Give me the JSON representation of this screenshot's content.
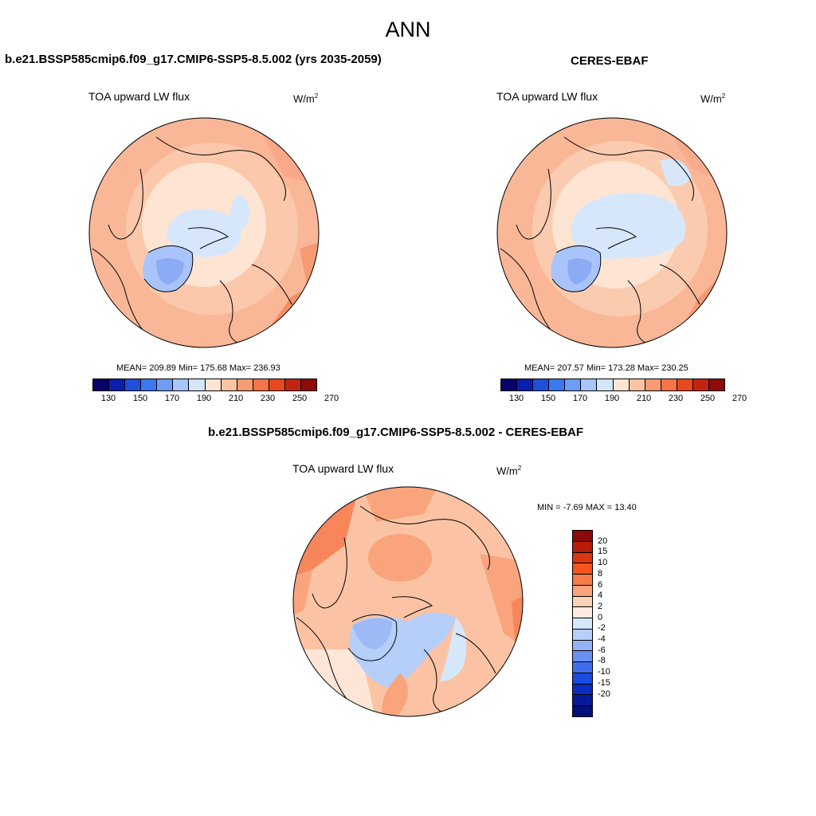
{
  "main_title": "ANN",
  "panels": [
    {
      "title": "b.e21.BSSP585cmip6.f09_g17.CMIP6-SSP5-8.5.002 (yrs 2035-2059)",
      "variable": "TOA upward LW flux",
      "units_base": "W/m",
      "units_exp": "2",
      "stats": "MEAN= 209.89  Min= 175.68  Max= 236.93"
    },
    {
      "title": "CERES-EBAF",
      "variable": "TOA upward LW flux",
      "units_base": "W/m",
      "units_exp": "2",
      "stats": "MEAN= 207.57  Min= 173.28  Max= 230.25"
    },
    {
      "title": "b.e21.BSSP585cmip6.f09_g17.CMIP6-SSP5-8.5.002 - CERES-EBAF",
      "variable": "TOA upward LW flux",
      "units_base": "W/m",
      "units_exp": "2",
      "stats": "MIN =  -7.69 MAX =  13.40"
    }
  ],
  "abs_colorbar": {
    "colors": [
      "#08006b",
      "#0a1fb0",
      "#1d4fd8",
      "#3a78f0",
      "#6f9cf5",
      "#a9c6fb",
      "#d4e6fb",
      "#fde5d2",
      "#fbc3a4",
      "#f89c73",
      "#f57449",
      "#e9481f",
      "#c32410",
      "#8c0a0a"
    ],
    "ticks": [
      "130",
      "150",
      "170",
      "190",
      "210",
      "230",
      "250",
      "270"
    ]
  },
  "diff_colorbar": {
    "colors": [
      "#8c0a0a",
      "#b81c0a",
      "#dc3512",
      "#f5541f",
      "#f87c4b",
      "#f9a47c",
      "#fcd3b8",
      "#fdebdf",
      "#d6e7fa",
      "#b6cff8",
      "#93b2f5",
      "#6b90f2",
      "#3f6df0",
      "#1b4be0",
      "#0a2cc0",
      "#071a9c",
      "#030f7a"
    ],
    "ticks": [
      "20",
      "15",
      "10",
      "8",
      "6",
      "4",
      "2",
      "0",
      "-2",
      "-4",
      "-6",
      "-8",
      "-10",
      "-15",
      "-20"
    ]
  }
}
